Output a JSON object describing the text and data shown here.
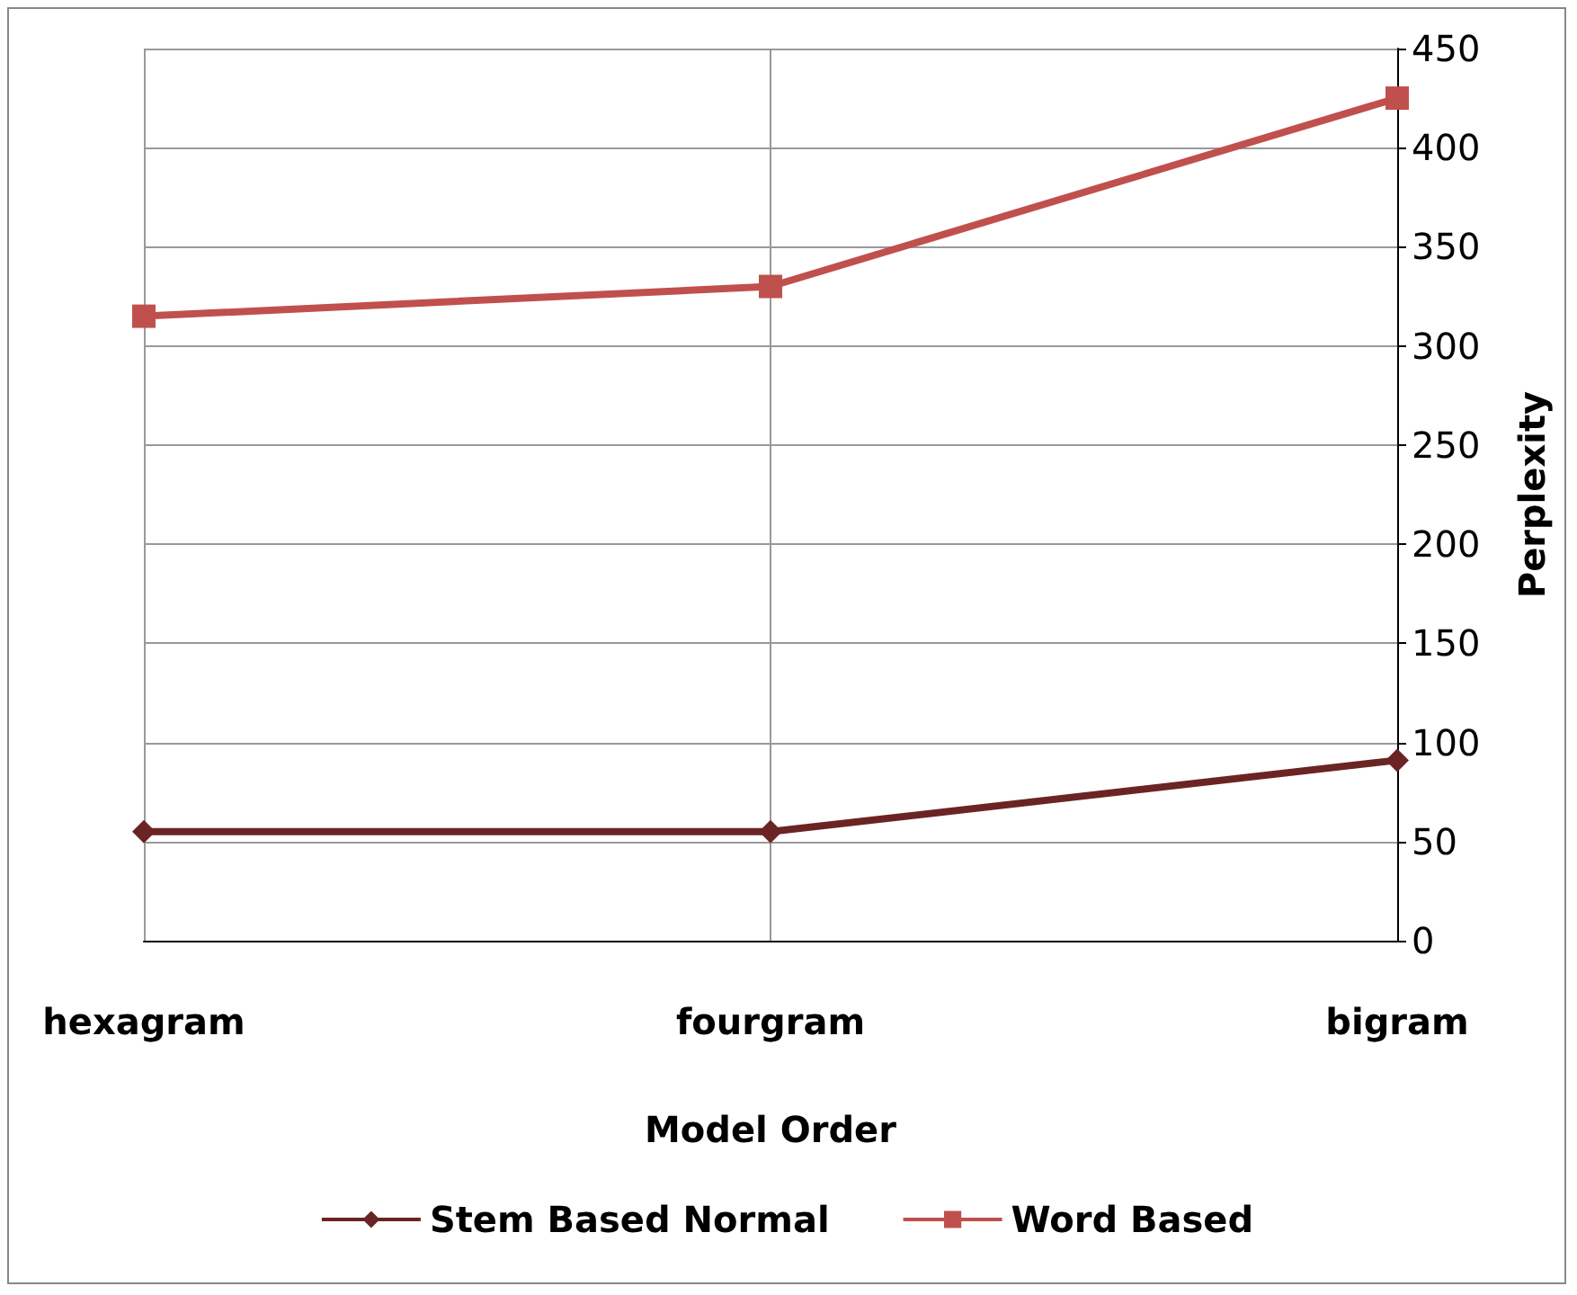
{
  "chart_data": {
    "type": "line",
    "xlabel": "Model Order",
    "ylabel": "Perplexity",
    "categories": [
      "hexagram",
      "fourgram",
      "bigram"
    ],
    "series": [
      {
        "name": "Stem Based Normal",
        "color": "#6b2424",
        "marker": "diamond",
        "values": [
          55,
          55,
          91
        ]
      },
      {
        "name": "Word Based",
        "color": "#c0504d",
        "marker": "square",
        "values": [
          315,
          330,
          425
        ]
      }
    ],
    "ylim": [
      0,
      450
    ],
    "yticks": [
      0,
      50,
      100,
      150,
      200,
      250,
      300,
      350,
      400,
      450
    ],
    "grid": true,
    "legend": "bottom"
  }
}
